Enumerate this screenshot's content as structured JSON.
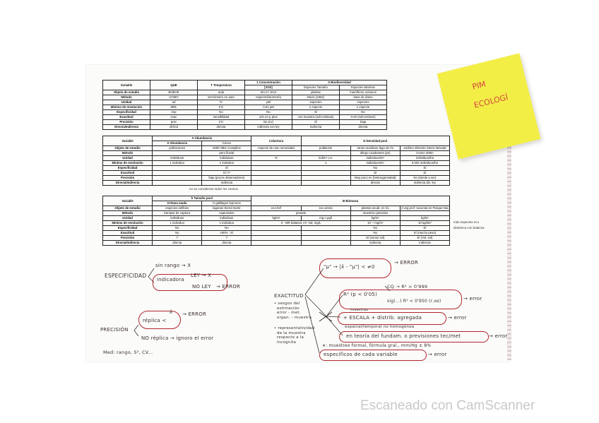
{
  "table1": {
    "rows": [
      [
        {
          "t": "Variable",
          "h": 1,
          "rs": 2
        },
        {
          "t": "QUE",
          "h": 1,
          "rs": 2
        },
        {
          "t": "T Temperatura",
          "h": 1,
          "rs": 2
        },
        {
          "t": "1 Concentración",
          "h": 1
        },
        {
          "t": "S Biodiversidad",
          "h": 1,
          "cs": 2
        }
      ],
      [
        {
          "t": "[SO2]"
        },
        {
          "t": "Especies Tamaño"
        },
        {
          "t": "Especies Marinas"
        }
      ],
      [
        "Objeto de estudio",
        "BOBOE",
        "aula",
        "dm-3 / SO4",
        "plantas",
        "mamíferos océanos"
      ],
      [
        "Método",
        "COMO",
        "termómetro en aula",
        "espectrofotometría",
        "Davis (1962)",
        "base de datos"
      ],
      [
        "Unidad",
        "ud",
        "ºC",
        "µM",
        "especies",
        "especies"
      ],
      [
        "Mínimo de resolución",
        "MRL",
        "1ºC",
        "0,01 µM",
        "1 especie",
        "1 especie"
      ],
      [
        "Especificidad",
        "esp",
        "No",
        "No",
        "Sí",
        "No"
      ],
      [
        "Exactitud",
        "exac",
        "sensibilidad",
        "Δ% en µ ptos",
        "con muestra (sub-estimas)",
        "0-20 (sub-estimar)"
      ],
      [
        "Precisión",
        "prec",
        "1ºC",
        "No (cv)",
        "Sí",
        "baja"
      ],
      [
        "Directa/Indirecta",
        "dir/ind",
        "directa",
        "indirecta con ley",
        "Indirecta",
        "directa"
      ]
    ]
  },
  "table2": {
    "rows": [
      [
        {
          "t": "Variable",
          "h": 1,
          "rs": 2
        },
        {
          "t": "A Abundancia",
          "h": 1,
          "cs": 2
        },
        {
          "t": "Cobertura",
          "h": 1,
          "rs": 2
        },
        {
          "t": "D Densidad pool",
          "h": 1,
          "cs": 3,
          "rs": 2
        }
      ],
      [
        {
          "t": "A Abundancia"
        },
        {
          "t": "Censo"
        }
      ],
      [
        "Objeto de estudio",
        "poblaciones",
        "2000 Tab1 Conejillos",
        "especie de una comunidad",
        "población",
        "ranas acuáticas lago de río",
        "endrino silvestre Sierra Nevada"
      ],
      [
        "Método",
        "",
        {
          "t": "pero fluvial"
        },
        "",
        "",
        "dilego cuadrantes (ps)",
        "Censo 400m"
      ],
      [
        "Unidad",
        "individuos",
        "individuos",
        "%",
        "ind/m² o.s.",
        "individuos/m²",
        "individuos/ha"
      ],
      [
        "Mínimo de resolución",
        "1 individuo",
        "1 individuo",
        "",
        "1",
        "individuos/m²",
        "0,004 individuos/ha"
      ],
      [
        "Especificidad",
        "",
        "Sí",
        "",
        "",
        "No",
        "Sí"
      ],
      [
        "Exactitud",
        "",
        "Sí / F",
        "",
        "",
        "Sí",
        "Sí"
      ],
      [
        "Precisión",
        "",
        "baja (pocos observadores)",
        "",
        "",
        "Muy poco en (heterogeneidad)",
        "No (tiende a ser)"
      ],
      [
        "Directa/Indirecta",
        "",
        "Indirecta",
        "",
        "",
        "directa",
        "indirecta din. ley"
      ]
    ],
    "note": "no se consideran todos los censos"
  },
  "table3": {
    "rows": [
      [
        {
          "t": "Variable",
          "h": 1,
          "rs": 2
        },
        {
          "t": "h Tamaño pool",
          "h": 1,
          "cs": 2
        },
        {
          "t": "B Biomasa",
          "h": 1,
          "cs": 4,
          "rs": 2
        }
      ],
      [
        {
          "t": "H Rana muda"
        },
        {
          "t": "H gallitagos leprosos"
        }
      ],
      [
        "Objeto de estudio",
        "especies anfibios",
        "lagunas Sierra Norte",
        "eco hef",
        "eco arena",
        "plantas acuát. en río",
        "4 veg prof. sucursal en Parque Nac."
      ],
      [
        "Método",
        "trampas de captura",
        "capturados",
        {
          "t": "pesado",
          "cs": 2
        },
        "muestreo parcelas",
        ""
      ],
      [
        "Unidad",
        "individuos",
        "individuos",
        "kg/m²",
        "mg o µg/l",
        "kg/m²",
        "kg/m²"
      ],
      [
        "Mínimo de resolución",
        "1 individuo",
        "1 individuo",
        {
          "t": "0 - MR balanza: m², ind. mg/L",
          "cs": 2
        },
        "10⁻⁴ mg/m²",
        "10 kg/km²"
      ],
      [
        "Especificidad",
        "No",
        "No",
        "",
        "",
        "No",
        "Sí"
      ],
      [
        "Exactitud",
        "No",
        "≤90% : Sí",
        "",
        "",
        "No",
        "Sí (mucho peso)"
      ],
      [
        "Precisión",
        "?",
        "?",
        "",
        "",
        "Sí (censo sol)",
        "Sí (Vol. sol)"
      ],
      [
        "Directa/Indirecta",
        "directa",
        "directa",
        "",
        "",
        "indirecta",
        "Indirecta"
      ]
    ],
    "side_note_1": "más especies eco",
    "side_note_2": "dinámica con balanza"
  },
  "handwritten": {
    "especificidad": "ESPECIFICIDAD",
    "sinrango": "sin rango → X",
    "indicadora": "indicadora",
    "ley": "LEY → X",
    "no_ley": "NO LEY",
    "error1": "→ ERROR",
    "precision": "PRECISIÓN",
    "replica": "réplica <",
    "xbar": "x̄",
    "error2": "→ ERROR",
    "no_replica": "NO réplica → ignoro el error",
    "med": "Med: rango, S², CV...",
    "exactitud": "EXACTITUD",
    "ex_notes": "• sesgos del\n  estimación\n  error - met.\n  organ. - muestra",
    "ex_notes2": "• representatividad\n  de la muestra\n  respecto a la\n  incógnita",
    "mu": "\"µ\" → |x̄ - \"µ\"| < ≠0",
    "error3": "→ ERROR",
    "r2": "R² (p < 0'05)",
    "cq": "CQ → R² > 0'999",
    "sigc": "sig(...) R² < 0'950 (r,xe)",
    "error4": "→ error",
    "muestras": "muestras",
    "escala": "+ ESCALA + distrib. agregada",
    "error5": "→ error",
    "espacial": "espacial/temporal   no homogénea",
    "teoria": "en teoría del fundam. o previsiones tec/met",
    "error6": "→ error",
    "formula": "∗: muestreo formal, fórmula gral., mm/Hg ± 8%",
    "especificos": "específicos de cada variable",
    "error7": "→ error"
  },
  "sticky": {
    "line1": "PIM",
    "line2": "ECOLOGÍ",
    "color": "#f3ee46"
  },
  "watermark": "Escaneado con CamScanner"
}
